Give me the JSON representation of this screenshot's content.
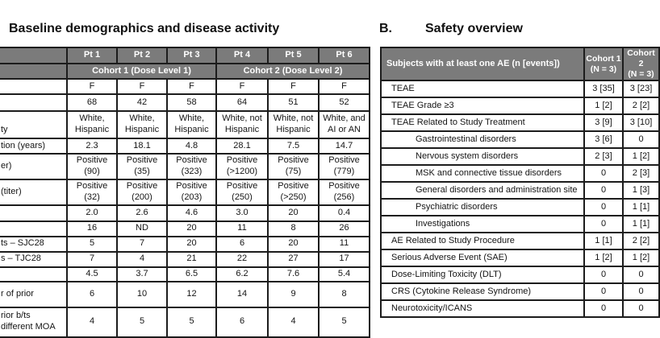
{
  "colors": {
    "header_gray": "#7b7b7b",
    "border": "#1c1c1c",
    "header_text": "#ffffff",
    "body_text": "#141414"
  },
  "left_panel": {
    "title": "Baseline demographics and disease activity",
    "table": {
      "pt_headers": [
        "Pt 1",
        "Pt 2",
        "Pt 3",
        "Pt 4",
        "Pt 5",
        "Pt 6"
      ],
      "cohort_headers": [
        "Cohort 1 (Dose Level 1)",
        "Cohort 2 (Dose Level 2)"
      ],
      "rows": [
        {
          "label": "",
          "values": [
            "F",
            "F",
            "F",
            "F",
            "F",
            "F"
          ]
        },
        {
          "label": "",
          "values": [
            "68",
            "42",
            "58",
            "64",
            "51",
            "52"
          ]
        },
        {
          "label": "\nty",
          "values": [
            "White, Hispanic",
            "White, Hispanic",
            "White, Hispanic",
            "White, not Hispanic",
            "White, not Hispanic",
            "White, and AI or AN"
          ]
        },
        {
          "label": "tion (years)",
          "values": [
            "2.3",
            "18.1",
            "4.8",
            "28.1",
            "7.5",
            "14.7"
          ]
        },
        {
          "label": "er)",
          "values": [
            "Positive (90)",
            "Positive (35)",
            "Positive (323)",
            "Positive (>1200)",
            "Positive (75)",
            "Positive (779)"
          ]
        },
        {
          "label": "(titer)",
          "values": [
            "Positive (32)",
            "Positive (200)",
            "Positive (203)",
            "Positive (250)",
            "Positive (>250)",
            "Positive (256)"
          ]
        },
        {
          "label": "",
          "values": [
            "2.0",
            "2.6",
            "4.6",
            "3.0",
            "20",
            "0.4"
          ]
        },
        {
          "label": "",
          "values": [
            "16",
            "ND",
            "20",
            "11",
            "8",
            "26"
          ]
        },
        {
          "label": "ts – SJC28",
          "values": [
            "5",
            "7",
            "20",
            "6",
            "20",
            "11"
          ]
        },
        {
          "label": "s – TJC28",
          "values": [
            "7",
            "4",
            "21",
            "22",
            "27",
            "17"
          ]
        },
        {
          "label": "",
          "values": [
            "4.5",
            "3.7",
            "6.5",
            "6.2",
            "7.6",
            "5.4"
          ]
        },
        {
          "label": "r of prior",
          "values": [
            "6",
            "10",
            "12",
            "14",
            "9",
            "8"
          ]
        },
        {
          "label": "rior b/ts\ndifferent MOA",
          "values": [
            "4",
            "5",
            "5",
            "6",
            "4",
            "5"
          ]
        }
      ]
    }
  },
  "right_panel": {
    "label": "B.",
    "title": "Safety overview",
    "table": {
      "col_headers": [
        "Subjects with at least one AE (n [events])",
        "Cohort 1\n(N = 3)",
        "Cohort 2\n(N = 3)"
      ],
      "rows": [
        {
          "label": "TEAE",
          "indent": false,
          "cohort1": "3 [35]",
          "cohort2": "3 [23]"
        },
        {
          "label": "TEAE Grade ≥3",
          "indent": false,
          "cohort1": "1 [2]",
          "cohort2": "2 [2]"
        },
        {
          "label": "TEAE Related to Study Treatment",
          "indent": false,
          "cohort1": "3 [9]",
          "cohort2": "3 [10]"
        },
        {
          "label": "Gastrointestinal disorders",
          "indent": true,
          "cohort1": "3 [6]",
          "cohort2": "0"
        },
        {
          "label": "Nervous system disorders",
          "indent": true,
          "cohort1": "2 [3]",
          "cohort2": "1 [2]"
        },
        {
          "label": "MSK and connective tissue disorders",
          "indent": true,
          "cohort1": "0",
          "cohort2": "2 [3]"
        },
        {
          "label": "General disorders and administration site",
          "indent": true,
          "cohort1": "0",
          "cohort2": "1 [3]"
        },
        {
          "label": "Psychiatric disorders",
          "indent": true,
          "cohort1": "0",
          "cohort2": "1 [1]"
        },
        {
          "label": "Investigations",
          "indent": true,
          "cohort1": "0",
          "cohort2": "1 [1]"
        },
        {
          "label": "AE Related to Study Procedure",
          "indent": false,
          "cohort1": "1 [1]",
          "cohort2": "2 [2]"
        },
        {
          "label": "Serious Adverse Event (SAE)",
          "indent": false,
          "cohort1": "1 [2]",
          "cohort2": "1 [2]"
        },
        {
          "label": "Dose-Limiting Toxicity (DLT)",
          "indent": false,
          "cohort1": "0",
          "cohort2": "0"
        },
        {
          "label": "CRS (Cytokine Release Syndrome)",
          "indent": false,
          "cohort1": "0",
          "cohort2": "0"
        },
        {
          "label": "Neurotoxicity/ICANS",
          "indent": false,
          "cohort1": "0",
          "cohort2": "0"
        }
      ]
    }
  }
}
